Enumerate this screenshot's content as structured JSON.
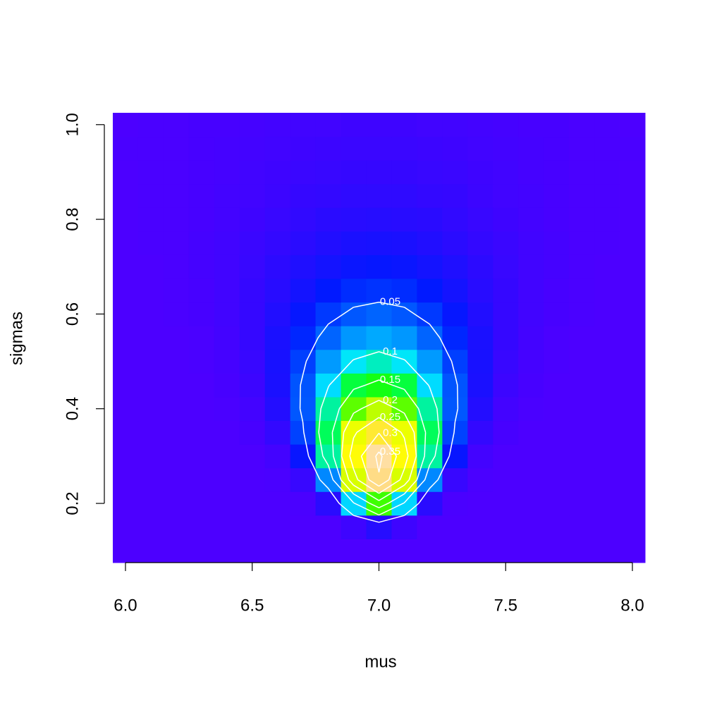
{
  "chart_data": {
    "type": "heatmap",
    "xlabel": "mus",
    "ylabel": "sigmas",
    "x": [
      6,
      6.1,
      6.2,
      6.3,
      6.4,
      6.5,
      6.6,
      6.7,
      6.8,
      6.9,
      7,
      7.1,
      7.2,
      7.3,
      7.4,
      7.5,
      7.6,
      7.7,
      7.8,
      7.9,
      8
    ],
    "y": [
      0.1,
      0.15,
      0.2,
      0.25,
      0.3,
      0.35,
      0.4,
      0.45,
      0.5,
      0.55,
      0.6,
      0.65,
      0.7,
      0.75,
      0.8,
      0.85,
      0.9,
      0.95,
      1
    ],
    "z": [
      [
        0,
        0,
        0,
        0,
        0,
        0,
        0,
        0,
        0,
        0,
        0,
        0,
        0,
        0,
        0,
        0,
        0,
        0,
        0,
        0,
        0
      ],
      [
        0,
        0,
        0,
        0,
        0,
        0,
        0,
        0,
        0,
        0.006,
        0.017,
        0.006,
        0,
        0,
        0,
        0,
        0,
        0,
        0,
        0,
        0
      ],
      [
        0,
        0,
        0,
        0,
        0,
        0,
        0,
        0.001,
        0.015,
        0.096,
        0.18,
        0.096,
        0.015,
        0.001,
        0,
        0,
        0,
        0,
        0,
        0,
        0
      ],
      [
        0,
        0,
        0,
        0,
        0,
        0,
        0.001,
        0.009,
        0.07,
        0.231,
        0.345,
        0.231,
        0.07,
        0.009,
        0.001,
        0,
        0,
        0,
        0,
        0,
        0
      ],
      [
        0,
        0,
        0,
        0,
        0,
        0,
        0.004,
        0.03,
        0.119,
        0.273,
        0.361,
        0.273,
        0.119,
        0.03,
        0.004,
        0,
        0,
        0,
        0,
        0,
        0
      ],
      [
        0,
        0,
        0,
        0,
        0,
        0.002,
        0.011,
        0.047,
        0.132,
        0.243,
        0.298,
        0.243,
        0.132,
        0.047,
        0.011,
        0.002,
        0,
        0,
        0,
        0,
        0
      ],
      [
        0,
        0,
        0,
        0,
        0.001,
        0.004,
        0.018,
        0.054,
        0.119,
        0.19,
        0.222,
        0.19,
        0.119,
        0.054,
        0.018,
        0.004,
        0.001,
        0,
        0,
        0,
        0
      ],
      [
        0,
        0,
        0,
        0,
        0.002,
        0.007,
        0.022,
        0.053,
        0.098,
        0.141,
        0.16,
        0.141,
        0.098,
        0.053,
        0.022,
        0.007,
        0.002,
        0,
        0,
        0,
        0
      ],
      [
        0,
        0,
        0,
        0.001,
        0.003,
        0.009,
        0.023,
        0.046,
        0.076,
        0.102,
        0.113,
        0.102,
        0.076,
        0.046,
        0.023,
        0.009,
        0.003,
        0.001,
        0,
        0,
        0
      ],
      [
        0,
        0,
        0,
        0.001,
        0.004,
        0.01,
        0.022,
        0.038,
        0.058,
        0.075,
        0.081,
        0.075,
        0.058,
        0.038,
        0.022,
        0.01,
        0.004,
        0.001,
        0,
        0,
        0
      ],
      [
        0,
        0,
        0.001,
        0.002,
        0.005,
        0.01,
        0.019,
        0.031,
        0.044,
        0.054,
        0.058,
        0.054,
        0.044,
        0.031,
        0.019,
        0.01,
        0.005,
        0.002,
        0.001,
        0,
        0
      ],
      [
        0,
        0,
        0.001,
        0.002,
        0.005,
        0.01,
        0.016,
        0.025,
        0.033,
        0.04,
        0.042,
        0.04,
        0.033,
        0.025,
        0.016,
        0.01,
        0.005,
        0.002,
        0.001,
        0,
        0
      ],
      [
        0,
        0,
        0.001,
        0.003,
        0.005,
        0.009,
        0.014,
        0.02,
        0.025,
        0.029,
        0.031,
        0.029,
        0.025,
        0.02,
        0.014,
        0.009,
        0.005,
        0.003,
        0.001,
        0,
        0
      ],
      [
        0,
        0.001,
        0.001,
        0.003,
        0.005,
        0.008,
        0.011,
        0.015,
        0.019,
        0.022,
        0.023,
        0.022,
        0.019,
        0.015,
        0.011,
        0.008,
        0.005,
        0.003,
        0.001,
        0.001,
        0
      ],
      [
        0,
        0.001,
        0.001,
        0.002,
        0.004,
        0.006,
        0.009,
        0.012,
        0.015,
        0.016,
        0.017,
        0.016,
        0.015,
        0.012,
        0.009,
        0.006,
        0.004,
        0.002,
        0.001,
        0.001,
        0
      ],
      [
        0,
        0.001,
        0.001,
        0.002,
        0.004,
        0.005,
        0.007,
        0.01,
        0.011,
        0.013,
        0.013,
        0.013,
        0.011,
        0.01,
        0.007,
        0.005,
        0.004,
        0.002,
        0.001,
        0.001,
        0
      ],
      [
        0,
        0.001,
        0.001,
        0.002,
        0.003,
        0.005,
        0.006,
        0.008,
        0.009,
        0.01,
        0.01,
        0.01,
        0.009,
        0.008,
        0.006,
        0.005,
        0.003,
        0.002,
        0.001,
        0.001,
        0
      ],
      [
        0.001,
        0.001,
        0.001,
        0.002,
        0.003,
        0.004,
        0.005,
        0.006,
        0.007,
        0.008,
        0.008,
        0.008,
        0.007,
        0.006,
        0.005,
        0.004,
        0.003,
        0.002,
        0.001,
        0.001,
        0.001
      ],
      [
        0,
        0.001,
        0.001,
        0.002,
        0.002,
        0.003,
        0.004,
        0.005,
        0.005,
        0.006,
        0.006,
        0.006,
        0.005,
        0.005,
        0.004,
        0.003,
        0.002,
        0.002,
        0.001,
        0.001,
        0
      ]
    ],
    "zlim": [
      0,
      0.37
    ],
    "palette": [
      "#4C00FF",
      "#0019FF",
      "#0080FF",
      "#00E5FF",
      "#00FF4D",
      "#1AFF00",
      "#80FF00",
      "#E6FF00",
      "#FFFF00",
      "#FFE53B",
      "#FFDB77",
      "#FFE0B3"
    ],
    "contour_levels": [
      0.05,
      0.1,
      0.15,
      0.2,
      0.25,
      0.3,
      0.35
    ],
    "contour_color": "#ffffff",
    "xlim": [
      5.95,
      8.05
    ],
    "ylim": [
      0.075,
      1.025
    ],
    "xticks": [
      {
        "value": 6,
        "label": "6.0"
      },
      6.5,
      {
        "value": 7,
        "label": "7.0"
      },
      7.5,
      {
        "value": 8,
        "label": "8.0"
      }
    ],
    "yticks": [
      0.2,
      0.4,
      0.6,
      0.8,
      {
        "value": 1,
        "label": "1.0"
      }
    ]
  }
}
